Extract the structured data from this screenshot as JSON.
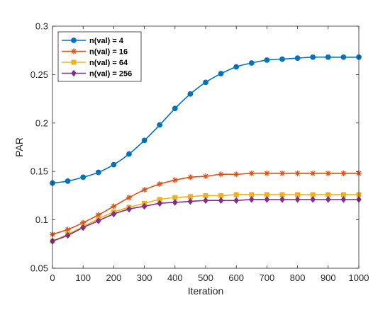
{
  "chart_data": {
    "type": "line",
    "xlabel": "Iteration",
    "ylabel": "PAR",
    "xlim": [
      0,
      1000
    ],
    "ylim": [
      0.05,
      0.3
    ],
    "xticks": [
      "0",
      "100",
      "200",
      "300",
      "400",
      "500",
      "600",
      "700",
      "800",
      "900",
      "1000"
    ],
    "yticks": [
      "0.05",
      "0.1",
      "0.15",
      "0.2",
      "0.25",
      "0.3"
    ],
    "grid": false,
    "legend_position": "top-left",
    "x": [
      0,
      50,
      100,
      150,
      200,
      250,
      300,
      350,
      400,
      450,
      500,
      550,
      600,
      650,
      700,
      750,
      800,
      850,
      900,
      950,
      1000
    ],
    "series": [
      {
        "name": "n(val) = 4",
        "color": "#0072BD",
        "marker": "circle",
        "values": [
          0.138,
          0.14,
          0.144,
          0.149,
          0.157,
          0.168,
          0.182,
          0.198,
          0.215,
          0.23,
          0.242,
          0.251,
          0.258,
          0.262,
          0.265,
          0.266,
          0.267,
          0.268,
          0.268,
          0.268,
          0.268
        ]
      },
      {
        "name": "n(val) = 16",
        "color": "#D95319",
        "marker": "asterisk",
        "values": [
          0.085,
          0.09,
          0.097,
          0.105,
          0.114,
          0.123,
          0.131,
          0.137,
          0.141,
          0.144,
          0.145,
          0.147,
          0.147,
          0.148,
          0.148,
          0.148,
          0.148,
          0.148,
          0.148,
          0.148,
          0.148
        ]
      },
      {
        "name": "n(val) = 64",
        "color": "#EDB120",
        "marker": "square",
        "values": [
          0.078,
          0.085,
          0.093,
          0.101,
          0.108,
          0.113,
          0.117,
          0.121,
          0.123,
          0.124,
          0.125,
          0.125,
          0.126,
          0.126,
          0.126,
          0.126,
          0.126,
          0.126,
          0.126,
          0.126,
          0.126
        ]
      },
      {
        "name": "n(val) = 256",
        "color": "#7E2F8E",
        "marker": "diamond",
        "values": [
          0.078,
          0.084,
          0.092,
          0.099,
          0.106,
          0.111,
          0.114,
          0.117,
          0.118,
          0.119,
          0.12,
          0.12,
          0.12,
          0.121,
          0.121,
          0.121,
          0.121,
          0.121,
          0.121,
          0.121,
          0.121
        ]
      }
    ]
  }
}
